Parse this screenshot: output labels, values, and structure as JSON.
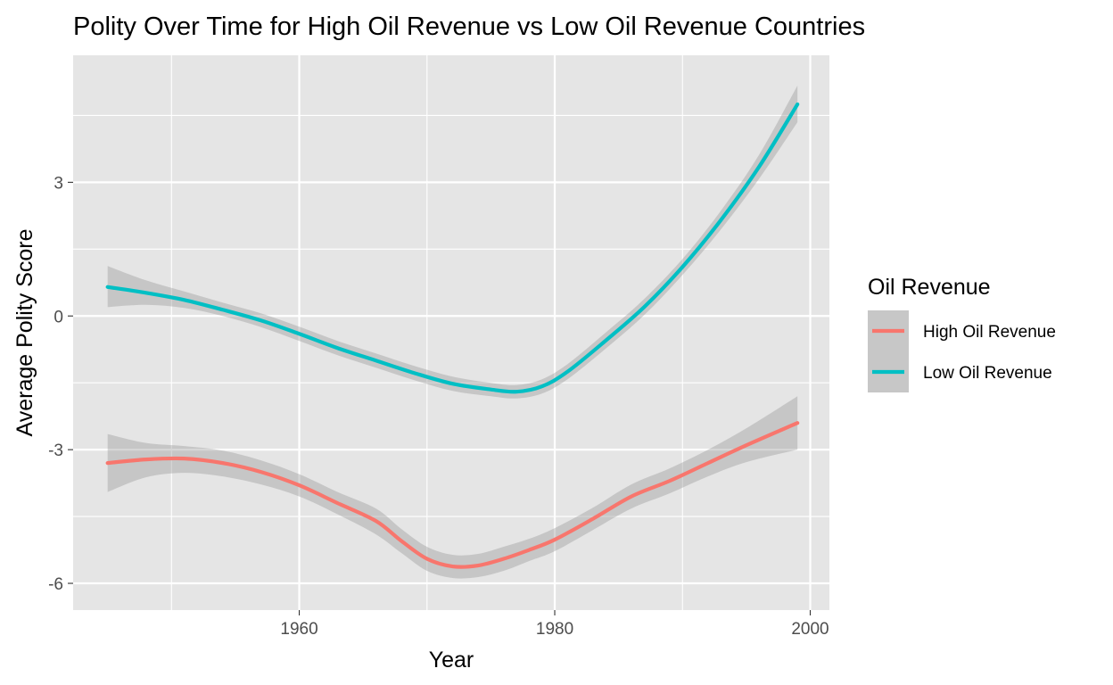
{
  "chart_data": {
    "type": "line",
    "title": "Polity Over Time for High Oil Revenue vs Low Oil Revenue Countries",
    "xlabel": "Year",
    "ylabel": "Average Polity Score",
    "xlim": [
      1942.3,
      2001.5
    ],
    "ylim": [
      -6.6,
      5.85
    ],
    "x_ticks": [
      1960,
      1980,
      2000
    ],
    "x_tick_labels": [
      "1960",
      "1980",
      "2000"
    ],
    "y_ticks": [
      -6,
      -3,
      0,
      3
    ],
    "y_tick_labels": [
      "-6",
      "-3",
      "0",
      "3"
    ],
    "x_minor_ticks": [
      1950,
      1970,
      1990
    ],
    "y_minor_ticks": [
      -4.5,
      -1.5,
      1.5,
      4.5
    ],
    "grid": true,
    "legend": {
      "title": "Oil Revenue",
      "position": "right"
    },
    "series": [
      {
        "name": "High Oil Revenue",
        "color": "#f8766d",
        "x": [
          1945,
          1948,
          1951,
          1954,
          1957,
          1960,
          1963,
          1966,
          1968,
          1970,
          1972,
          1974,
          1976,
          1978,
          1980,
          1983,
          1986,
          1989,
          1992,
          1995,
          1999
        ],
        "y": [
          -3.3,
          -3.22,
          -3.2,
          -3.3,
          -3.5,
          -3.8,
          -4.2,
          -4.6,
          -5.05,
          -5.45,
          -5.62,
          -5.6,
          -5.45,
          -5.25,
          -5.02,
          -4.55,
          -4.05,
          -3.7,
          -3.3,
          -2.9,
          -2.4
        ],
        "ci_low": [
          -3.95,
          -3.62,
          -3.52,
          -3.6,
          -3.78,
          -4.05,
          -4.45,
          -4.9,
          -5.32,
          -5.72,
          -5.88,
          -5.86,
          -5.72,
          -5.5,
          -5.28,
          -4.8,
          -4.32,
          -3.98,
          -3.6,
          -3.28,
          -3.0
        ],
        "ci_high": [
          -2.65,
          -2.85,
          -2.92,
          -3.02,
          -3.24,
          -3.55,
          -3.95,
          -4.32,
          -4.78,
          -5.18,
          -5.36,
          -5.34,
          -5.18,
          -5.0,
          -4.76,
          -4.3,
          -3.78,
          -3.42,
          -3.0,
          -2.52,
          -1.8
        ]
      },
      {
        "name": "Low Oil Revenue",
        "color": "#00bfc4",
        "x": [
          1945,
          1948,
          1951,
          1954,
          1957,
          1960,
          1963,
          1966,
          1969,
          1972,
          1975,
          1977,
          1979,
          1981,
          1984,
          1987,
          1990,
          1993,
          1996,
          1999
        ],
        "y": [
          0.65,
          0.52,
          0.36,
          0.14,
          -0.1,
          -0.4,
          -0.72,
          -1.0,
          -1.28,
          -1.52,
          -1.65,
          -1.7,
          -1.58,
          -1.25,
          -0.55,
          0.2,
          1.1,
          2.15,
          3.35,
          4.75
        ],
        "ci_low": [
          0.2,
          0.25,
          0.18,
          0.0,
          -0.25,
          -0.56,
          -0.88,
          -1.16,
          -1.44,
          -1.68,
          -1.8,
          -1.85,
          -1.74,
          -1.42,
          -0.73,
          0.02,
          0.92,
          1.94,
          3.08,
          4.35
        ],
        "ci_high": [
          1.12,
          0.8,
          0.55,
          0.3,
          0.06,
          -0.24,
          -0.56,
          -0.84,
          -1.12,
          -1.36,
          -1.5,
          -1.55,
          -1.42,
          -1.08,
          -0.37,
          0.38,
          1.28,
          2.36,
          3.62,
          5.17
        ]
      }
    ]
  },
  "colors": {
    "panel_background": "#e5e5e5",
    "grid_major": "#ffffff",
    "confidence_band": "#999999"
  }
}
